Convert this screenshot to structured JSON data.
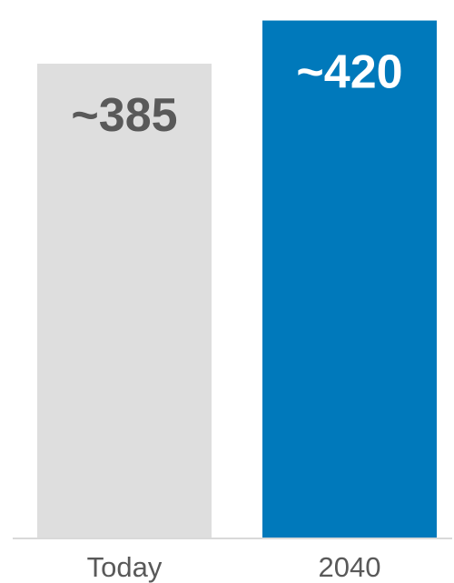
{
  "chart_data": {
    "type": "bar",
    "categories": [
      "Today",
      "2040"
    ],
    "values": [
      385,
      420
    ],
    "data_labels": [
      "~385",
      "~420"
    ],
    "title": "",
    "xlabel": "",
    "ylabel": "",
    "ylim": [
      0,
      430
    ],
    "grid": false,
    "legend": "none"
  },
  "colors": {
    "bars": [
      "#dedede",
      "#0079bb"
    ],
    "value_labels": [
      "#595959",
      "#ffffff"
    ],
    "tick_labels": "#595959",
    "baseline": "#d9d9d9"
  }
}
